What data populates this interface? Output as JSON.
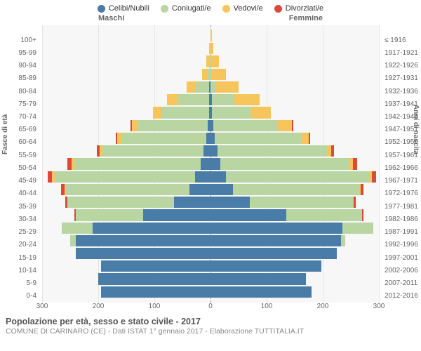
{
  "chart": {
    "type": "population-pyramid",
    "xmax": 300,
    "xtick_step": 100,
    "background_color": "#f7f7f7",
    "grid_color": "#e5e5e5",
    "centerline_color": "#999999",
    "legend": [
      {
        "label": "Celibi/Nubili",
        "color": "#4a7ca8"
      },
      {
        "label": "Coniugati/e",
        "color": "#b9d6a2"
      },
      {
        "label": "Vedovi/e",
        "color": "#f6c55b"
      },
      {
        "label": "Divorziati/e",
        "color": "#d94a3a"
      }
    ],
    "gender_left": "Maschi",
    "gender_right": "Femmine",
    "yaxis_left_title": "Fasce di età",
    "yaxis_right_title": "Anni di nascita",
    "age_groups": [
      "100+",
      "95-99",
      "90-94",
      "85-89",
      "80-84",
      "75-79",
      "70-74",
      "65-69",
      "60-64",
      "55-59",
      "50-54",
      "45-49",
      "40-44",
      "35-39",
      "30-34",
      "25-29",
      "20-24",
      "15-19",
      "10-14",
      "5-9",
      "0-4"
    ],
    "birth_years": [
      "≤ 1916",
      "1917-1921",
      "1922-1926",
      "1927-1931",
      "1932-1936",
      "1937-1941",
      "1942-1946",
      "1947-1951",
      "1952-1956",
      "1957-1961",
      "1962-1966",
      "1967-1971",
      "1972-1976",
      "1977-1981",
      "1982-1986",
      "1987-1991",
      "1992-1996",
      "1997-2001",
      "2002-2006",
      "2007-2011",
      "2012-2016"
    ],
    "maschi": [
      [
        0,
        0,
        0,
        0
      ],
      [
        0,
        0,
        3,
        0
      ],
      [
        0,
        2,
        5,
        0
      ],
      [
        0,
        5,
        10,
        0
      ],
      [
        2,
        25,
        15,
        0
      ],
      [
        3,
        55,
        20,
        0
      ],
      [
        3,
        85,
        15,
        0
      ],
      [
        5,
        125,
        10,
        2
      ],
      [
        8,
        150,
        8,
        3
      ],
      [
        12,
        180,
        5,
        5
      ],
      [
        18,
        225,
        5,
        7
      ],
      [
        28,
        250,
        4,
        8
      ],
      [
        38,
        220,
        2,
        6
      ],
      [
        65,
        190,
        0,
        4
      ],
      [
        120,
        120,
        0,
        2
      ],
      [
        210,
        55,
        0,
        0
      ],
      [
        240,
        10,
        0,
        0
      ],
      [
        240,
        0,
        0,
        0
      ],
      [
        195,
        0,
        0,
        0
      ],
      [
        200,
        0,
        0,
        0
      ],
      [
        195,
        0,
        0,
        0
      ]
    ],
    "femmine": [
      [
        0,
        0,
        2,
        0
      ],
      [
        0,
        0,
        5,
        0
      ],
      [
        0,
        0,
        15,
        0
      ],
      [
        0,
        3,
        25,
        0
      ],
      [
        0,
        10,
        40,
        0
      ],
      [
        2,
        40,
        45,
        0
      ],
      [
        3,
        70,
        35,
        0
      ],
      [
        5,
        115,
        25,
        2
      ],
      [
        8,
        155,
        12,
        3
      ],
      [
        12,
        195,
        8,
        5
      ],
      [
        18,
        230,
        6,
        7
      ],
      [
        28,
        255,
        4,
        8
      ],
      [
        40,
        225,
        2,
        6
      ],
      [
        70,
        185,
        0,
        4
      ],
      [
        135,
        135,
        0,
        2
      ],
      [
        235,
        55,
        0,
        0
      ],
      [
        232,
        8,
        0,
        0
      ],
      [
        225,
        0,
        0,
        0
      ],
      [
        198,
        0,
        0,
        0
      ],
      [
        170,
        0,
        0,
        0
      ],
      [
        180,
        0,
        0,
        0
      ]
    ],
    "xticks": [
      -300,
      -200,
      -100,
      0,
      100,
      200,
      300
    ],
    "xtick_labels": [
      "300",
      "200",
      "100",
      "0",
      "100",
      "200",
      "300"
    ]
  },
  "title": "Popolazione per età, sesso e stato civile - 2017",
  "subtitle": "COMUNE DI CARINARO (CE) - Dati ISTAT 1° gennaio 2017 - Elaborazione TUTTITALIA.IT"
}
